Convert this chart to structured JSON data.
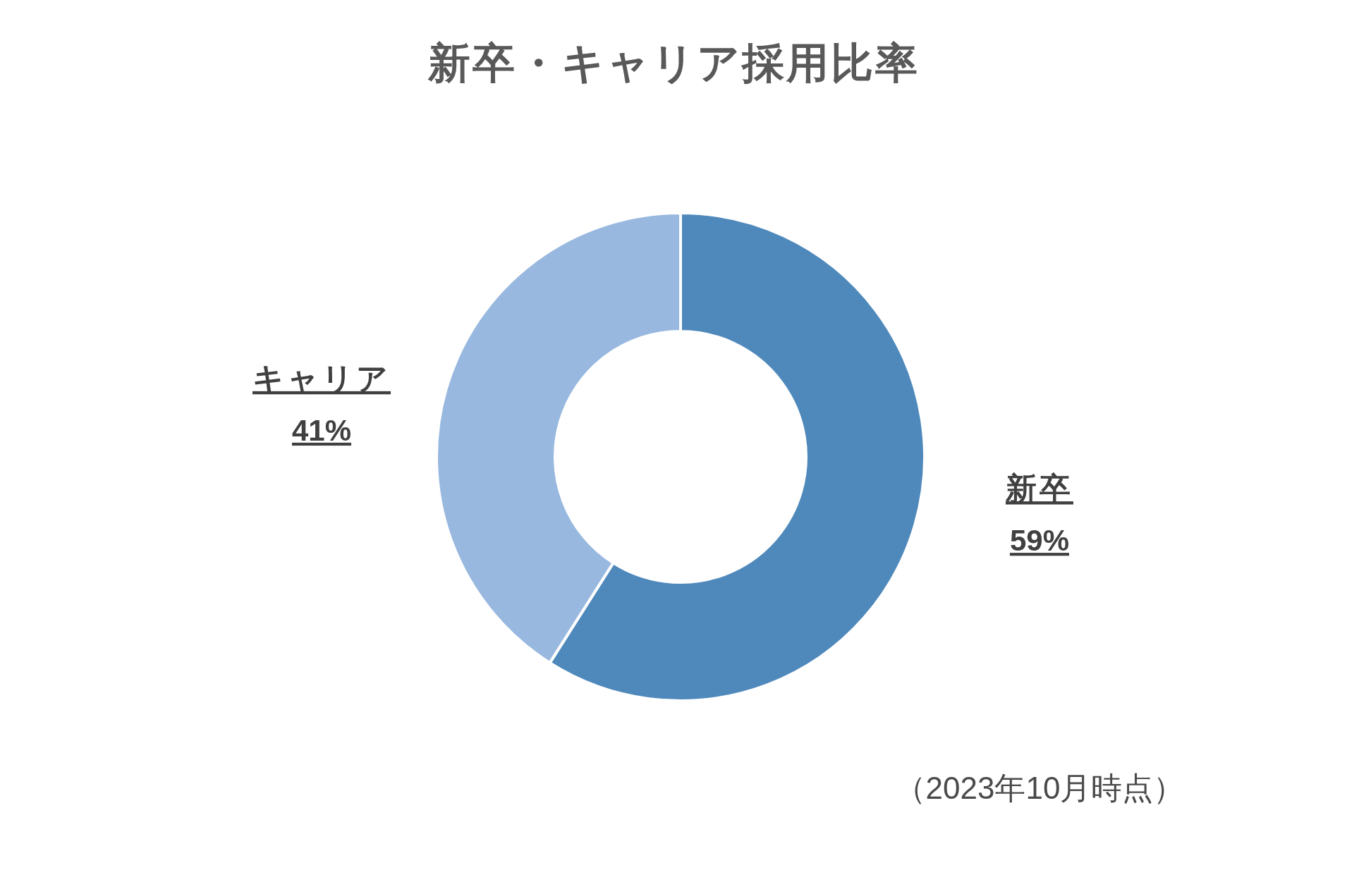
{
  "chart_data": {
    "type": "donut",
    "title": "新卒・キャリア採用比率",
    "categories": [
      "新卒",
      "キャリア"
    ],
    "values": [
      59,
      41
    ],
    "colors": [
      "#4f89bc",
      "#98b8df"
    ],
    "value_labels": [
      "59%",
      "41%"
    ],
    "annotations": [
      "（2023年10月時点）"
    ]
  }
}
